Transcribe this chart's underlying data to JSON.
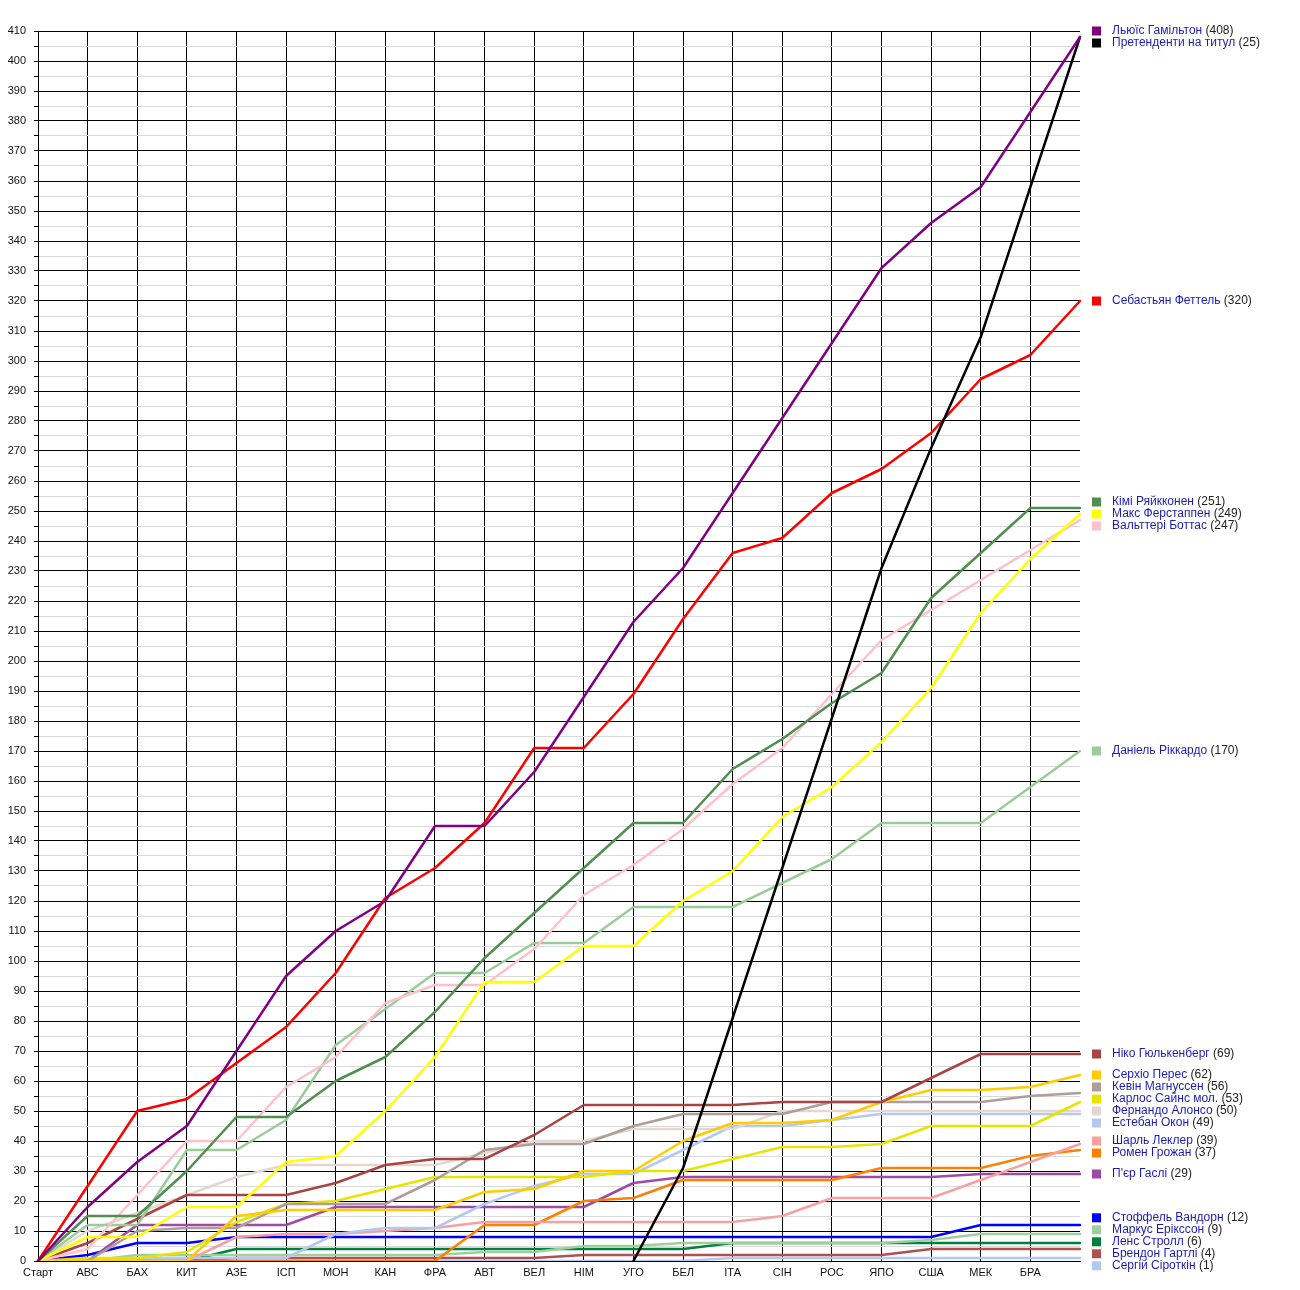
{
  "chart_data": {
    "type": "line",
    "categories": [
      "Старт",
      "АВС",
      "БАХ",
      "КИТ",
      "АЗЕ",
      "ІСП",
      "МОН",
      "КАН",
      "ФРА",
      "АВТ",
      "ВЕЛ",
      "НІМ",
      "УГО",
      "БЕЛ",
      "ІТА",
      "СІН",
      "РОС",
      "ЯПО",
      "США",
      "МЕК",
      "БРА",
      null
    ],
    "ylim": [
      0,
      410
    ],
    "yticks": [
      0,
      {
        "value": 5,
        "label": null
      },
      10,
      {
        "value": 15,
        "label": null
      },
      20,
      {
        "value": 25,
        "label": null
      },
      30,
      {
        "value": 35,
        "label": null
      },
      40,
      {
        "value": 45,
        "label": null
      },
      50,
      {
        "value": 55,
        "label": null
      },
      60,
      {
        "value": 65,
        "label": null
      },
      70,
      {
        "value": 75,
        "label": null
      },
      80,
      {
        "value": 85,
        "label": null
      },
      90,
      {
        "value": 95,
        "label": null
      },
      100,
      {
        "value": 105,
        "label": null
      },
      110,
      {
        "value": 115,
        "label": null
      },
      120,
      {
        "value": 125,
        "label": null
      },
      130,
      {
        "value": 135,
        "label": null
      },
      140,
      {
        "value": 145,
        "label": null
      },
      150,
      {
        "value": 155,
        "label": null
      },
      160,
      {
        "value": 165,
        "label": null
      },
      170,
      {
        "value": 175,
        "label": null
      },
      180,
      {
        "value": 185,
        "label": null
      },
      190,
      {
        "value": 195,
        "label": null
      },
      200,
      {
        "value": 205,
        "label": null
      },
      210,
      {
        "value": 215,
        "label": null
      },
      220,
      {
        "value": 225,
        "label": null
      },
      230,
      {
        "value": 235,
        "label": null
      },
      240,
      {
        "value": 245,
        "label": null
      },
      250,
      {
        "value": 255,
        "label": null
      },
      260,
      {
        "value": 265,
        "label": null
      },
      270,
      {
        "value": 275,
        "label": null
      },
      280,
      {
        "value": 285,
        "label": null
      },
      290,
      {
        "value": 295,
        "label": null
      },
      300,
      {
        "value": 305,
        "label": null
      },
      310,
      {
        "value": 315,
        "label": null
      },
      320,
      {
        "value": 325,
        "label": null
      },
      330,
      {
        "value": 335,
        "label": null
      },
      340,
      {
        "value": 345,
        "label": null
      },
      350,
      {
        "value": 355,
        "label": null
      },
      360,
      {
        "value": 365,
        "label": null
      },
      370,
      {
        "value": 375,
        "label": null
      },
      380,
      {
        "value": 385,
        "label": null
      },
      390,
      {
        "value": 395,
        "label": null
      },
      400,
      {
        "value": 405,
        "label": null
      },
      410
    ],
    "grid": true,
    "legend": "right",
    "series": [
      {
        "name": "Льюїс Гамільтон (408)",
        "color": "#800080",
        "values": [
          0,
          18,
          33,
          45,
          70,
          95,
          110,
          120,
          145,
          145,
          163,
          188,
          213,
          231,
          256,
          281,
          306,
          331,
          346,
          358,
          383,
          408
        ]
      },
      {
        "name": "Претенденти на титул (25)",
        "color": "#000000",
        "values": [
          null,
          null,
          null,
          null,
          null,
          null,
          null,
          null,
          null,
          null,
          null,
          null,
          0,
          31,
          81,
          131,
          181,
          231,
          271,
          308,
          358,
          408
        ]
      },
      {
        "name": "Себастьян Феттель (320)",
        "color": "#ff0000",
        "values": [
          0,
          25,
          50,
          54,
          66,
          78,
          96,
          121,
          131,
          146,
          171,
          171,
          189,
          214,
          236,
          241,
          256,
          264,
          276,
          294,
          302,
          320
        ]
      },
      {
        "name": "Кімі Ряйкконен (251)",
        "color": "#4f8f4f",
        "values": [
          0,
          15,
          15,
          30,
          48,
          48,
          60,
          68,
          83,
          101,
          116,
          131,
          146,
          146,
          164,
          174,
          186,
          196,
          221,
          236,
          251,
          251
        ]
      },
      {
        "name": "Макс Ферстаппен (249)",
        "color": "#ffff00",
        "values": [
          0,
          8,
          8,
          18,
          18,
          33,
          35,
          50,
          68,
          93,
          93,
          105,
          105,
          120,
          130,
          148,
          158,
          173,
          191,
          216,
          234,
          249
        ]
      },
      {
        "name": "Вальттері Боттас (247)",
        "color": "#ffc0cb",
        "values": [
          0,
          4,
          22,
          40,
          40,
          58,
          68,
          86,
          92,
          92,
          104,
          122,
          132,
          144,
          159,
          171,
          189,
          207,
          217,
          227,
          237,
          247
        ]
      },
      {
        "name": "Даніель Ріккардо (170)",
        "color": "#99cc99",
        "values": [
          0,
          12,
          12,
          37,
          37,
          47,
          72,
          84,
          96,
          96,
          106,
          106,
          118,
          118,
          118,
          126,
          134,
          146,
          146,
          146,
          158,
          170
        ]
      },
      {
        "name": "Ніко Гюлькенберг (69)",
        "color": "#aa4444",
        "values": [
          0,
          6,
          14,
          22,
          22,
          22,
          26,
          32,
          34,
          34,
          42,
          52,
          52,
          52,
          52,
          53,
          53,
          53,
          61,
          69,
          69,
          69
        ]
      },
      {
        "name": "Серхіо Перес (62)",
        "color": "#ffcc00",
        "values": [
          0,
          0,
          0,
          0,
          15,
          17,
          17,
          17,
          17,
          23,
          24,
          30,
          30,
          40,
          46,
          46,
          47,
          53,
          57,
          57,
          58,
          62
        ]
      },
      {
        "name": "Кевін Магнуссен (56)",
        "color": "#ae9e9a",
        "values": [
          0,
          0,
          10,
          11,
          11,
          19,
          19,
          19,
          27,
          37,
          39,
          39,
          45,
          49,
          49,
          49,
          53,
          53,
          53,
          53,
          55,
          56
        ]
      },
      {
        "name": "Карлос Сайнс мол. (53)",
        "color": "#e5e500",
        "values": [
          0,
          1,
          1,
          3,
          13,
          19,
          20,
          24,
          28,
          28,
          28,
          28,
          30,
          30,
          34,
          38,
          38,
          39,
          45,
          45,
          45,
          53
        ]
      },
      {
        "name": "Фернандо Алонсо (50)",
        "color": "#e6d6d0",
        "values": [
          0,
          10,
          16,
          22,
          28,
          32,
          32,
          32,
          32,
          36,
          40,
          40,
          44,
          44,
          44,
          50,
          50,
          50,
          50,
          50,
          50,
          50
        ]
      },
      {
        "name": "Естебан Окон (49)",
        "color": "#b4c8f0",
        "values": [
          0,
          0,
          1,
          1,
          1,
          1,
          9,
          11,
          11,
          19,
          25,
          29,
          29,
          37,
          45,
          45,
          47,
          49,
          49,
          49,
          49,
          49
        ]
      },
      {
        "name": "Шарль Леклер (39)",
        "color": "#f7a0a0",
        "values": [
          0,
          0,
          0,
          0,
          8,
          9,
          9,
          10,
          11,
          13,
          13,
          13,
          13,
          13,
          13,
          15,
          21,
          21,
          21,
          27,
          33,
          39
        ]
      },
      {
        "name": "Ромен Грожан (37)",
        "color": "#ff8000",
        "values": [
          0,
          0,
          0,
          0,
          0,
          0,
          0,
          0,
          0,
          12,
          12,
          20,
          21,
          27,
          27,
          27,
          27,
          31,
          31,
          31,
          35,
          37
        ]
      },
      {
        "name": "П'єр Гаслі (29)",
        "color": "#9d4ba5",
        "values": [
          0,
          0,
          12,
          12,
          12,
          12,
          18,
          18,
          18,
          18,
          18,
          18,
          26,
          28,
          28,
          28,
          28,
          28,
          28,
          29,
          29,
          29
        ]
      },
      {
        "name": "Стоффель Вандорн (12)",
        "color": "#0000ff",
        "values": [
          0,
          2,
          6,
          6,
          8,
          8,
          8,
          8,
          8,
          8,
          8,
          8,
          8,
          8,
          8,
          8,
          8,
          8,
          8,
          12,
          12,
          12
        ]
      },
      {
        "name": "Маркус Ерікссон (9)",
        "color": "#9fcf9f",
        "values": [
          0,
          0,
          2,
          2,
          2,
          2,
          2,
          2,
          2,
          3,
          3,
          5,
          5,
          6,
          6,
          6,
          6,
          6,
          7,
          9,
          9,
          9
        ]
      },
      {
        "name": "Ленс Стролл (6)",
        "color": "#007f3f",
        "values": [
          null,
          null,
          0,
          0,
          4,
          4,
          4,
          4,
          4,
          4,
          4,
          4,
          4,
          4,
          6,
          6,
          6,
          6,
          6,
          6,
          6,
          6
        ]
      },
      {
        "name": "Брендон Гартлі (4)",
        "color": "#b05050",
        "values": [
          0,
          0,
          0,
          0,
          1,
          1,
          1,
          1,
          1,
          1,
          1,
          2,
          2,
          2,
          2,
          2,
          2,
          2,
          4,
          4,
          4,
          4
        ]
      },
      {
        "name": "Сергій Сіроткін (1)",
        "color": "#b0c8f4",
        "values": [
          0,
          0,
          0,
          0,
          0,
          0,
          0,
          0,
          0,
          0,
          0,
          0,
          0,
          0,
          1,
          1,
          1,
          1,
          1,
          1,
          1,
          1
        ]
      }
    ]
  }
}
